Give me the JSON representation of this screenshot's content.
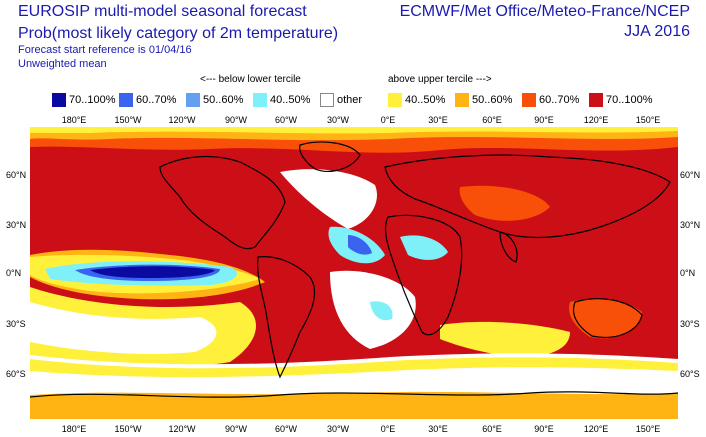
{
  "title": {
    "line1": "EUROSIP multi-model seasonal forecast",
    "line2": "Prob(most likely category of 2m temperature)",
    "line3": "Forecast start reference is 01/04/16",
    "line4": "Unweighted mean"
  },
  "header_right": {
    "centres": "ECMWF/Met Office/Meteo-France/NCEP",
    "season": "JJA 2016"
  },
  "legend": {
    "below_caption": "<--- below lower tercile",
    "above_caption": "above upper tercile --->",
    "items": [
      {
        "label": "70..100%",
        "color": "#0a0aa0"
      },
      {
        "label": "60..70%",
        "color": "#3a64f0"
      },
      {
        "label": "50..60%",
        "color": "#64a0f0"
      },
      {
        "label": "40..50%",
        "color": "#80f0f8"
      },
      {
        "label": "other",
        "color": "#ffffff"
      },
      {
        "label": "40..50%",
        "color": "#fff03c"
      },
      {
        "label": "50..60%",
        "color": "#ffb414"
      },
      {
        "label": "60..70%",
        "color": "#f85008"
      },
      {
        "label": "70..100%",
        "color": "#cc0e16"
      }
    ]
  },
  "axes": {
    "lon_labels": [
      "180°E",
      "150°W",
      "120°W",
      "90°W",
      "60°W",
      "30°W",
      "0°E",
      "30°E",
      "60°E",
      "90°E",
      "120°E",
      "150°E"
    ],
    "lat_labels": [
      "60°N",
      "30°N",
      "0°N",
      "30°S",
      "60°S"
    ]
  }
}
